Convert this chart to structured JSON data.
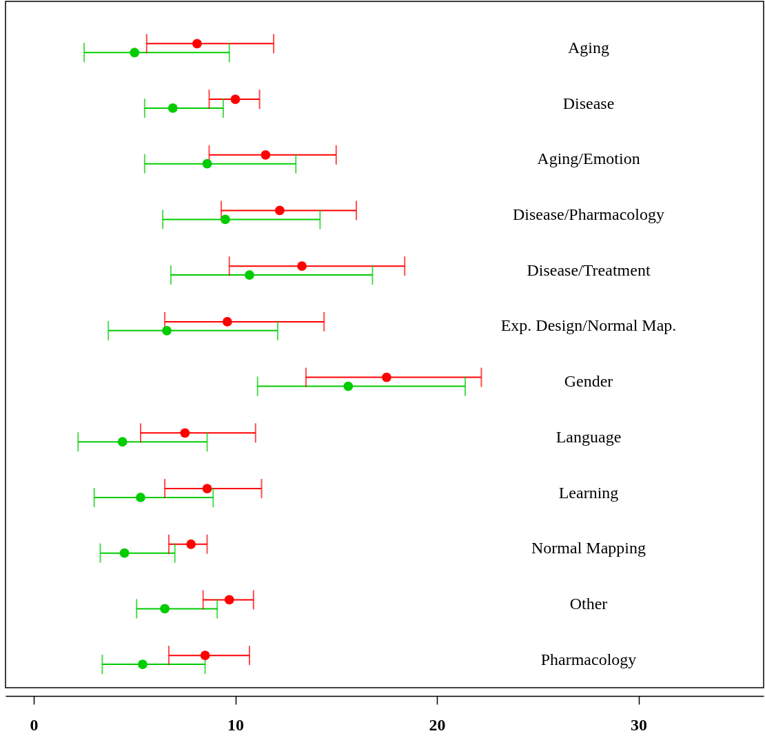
{
  "chart_data": {
    "type": "scatter",
    "orientation": "horizontal",
    "categories": [
      "Aging",
      "Disease",
      "Aging/Emotion",
      "Disease/Pharmacology",
      "Disease/Treatment",
      "Exp. Design/Normal Map.",
      "Gender",
      "Language",
      "Learning",
      "Normal Mapping",
      "Other",
      "Pharmacology"
    ],
    "series": [
      {
        "color": "#ff0000",
        "values": [
          8.1,
          10.0,
          11.5,
          12.2,
          13.3,
          9.6,
          17.5,
          7.5,
          8.6,
          7.8,
          9.7,
          8.5
        ],
        "errors": [
          [
            5.6,
            11.9
          ],
          [
            8.7,
            11.2
          ],
          [
            8.7,
            15.0
          ],
          [
            9.3,
            16.0
          ],
          [
            9.7,
            18.4
          ],
          [
            6.5,
            14.4
          ],
          [
            13.5,
            22.2
          ],
          [
            5.3,
            11.0
          ],
          [
            6.5,
            11.3
          ],
          [
            6.7,
            8.6
          ],
          [
            8.4,
            10.9
          ],
          [
            6.7,
            10.7
          ]
        ]
      },
      {
        "color": "#00cc00",
        "values": [
          5.0,
          6.9,
          8.6,
          9.5,
          10.7,
          6.6,
          15.6,
          4.4,
          5.3,
          4.5,
          6.5,
          5.4
        ],
        "errors": [
          [
            2.5,
            9.7
          ],
          [
            5.5,
            9.4
          ],
          [
            5.5,
            13.0
          ],
          [
            6.4,
            14.2
          ],
          [
            6.8,
            16.8
          ],
          [
            3.7,
            12.1
          ],
          [
            11.1,
            21.4
          ],
          [
            2.2,
            8.6
          ],
          [
            3.0,
            8.9
          ],
          [
            3.3,
            7.0
          ],
          [
            5.1,
            9.1
          ],
          [
            3.4,
            8.5
          ]
        ]
      }
    ],
    "xlim": [
      -1.4,
      36.2
    ],
    "xticks": [
      0,
      10,
      20,
      30
    ],
    "marker": "circle",
    "legend": false,
    "grid": false
  }
}
